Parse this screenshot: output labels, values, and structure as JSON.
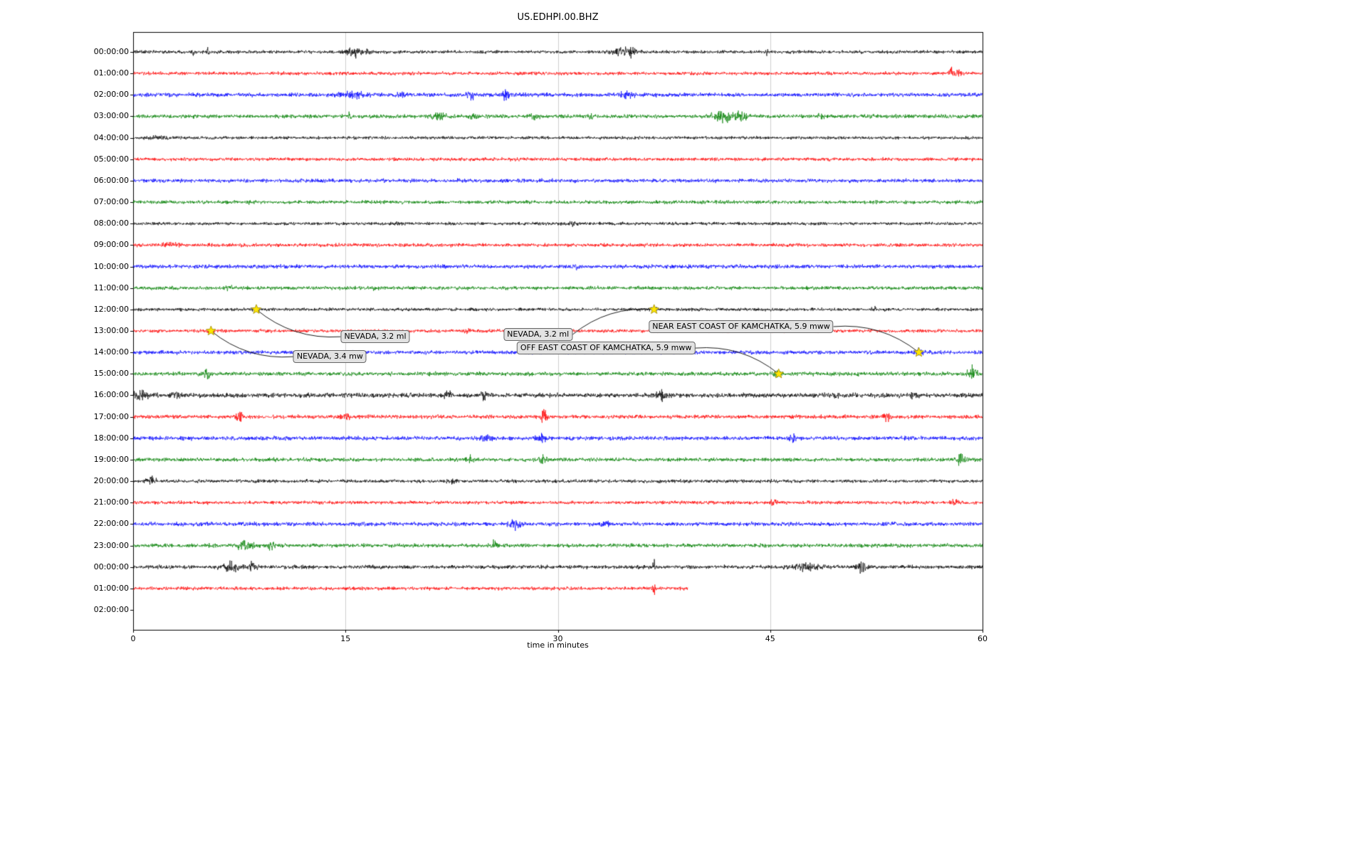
{
  "colors": {
    "grid": "#cfcfcf",
    "axis": "#000000",
    "star_fill": "#ffe600",
    "star_edge": "#9a8700",
    "annotation_bg": "#e2e2e2",
    "annotation_border": "#666666"
  },
  "chart_data": {
    "type": "line",
    "title": "US.EDHPI.00.BHZ",
    "xlabel": "time in minutes",
    "xlim": [
      0,
      60
    ],
    "x_ticks": [
      0,
      15,
      30,
      45,
      60
    ],
    "trace_color_cycle": [
      "#000000",
      "#ff0000",
      "#0000ff",
      "#008000"
    ],
    "rows": [
      {
        "label": "00:00:00",
        "color": "#000000",
        "base": 2.3,
        "end_min": 60,
        "bursts": [
          {
            "x": 4.2,
            "w": 0.15,
            "a": 5
          },
          {
            "x": 5.3,
            "w": 0.1,
            "a": 4
          },
          {
            "x": 15.6,
            "w": 0.5,
            "a": 7
          },
          {
            "x": 16.6,
            "w": 0.2,
            "a": 5
          },
          {
            "x": 34.6,
            "w": 0.8,
            "a": 5
          },
          {
            "x": 35.2,
            "w": 0.15,
            "a": 6
          },
          {
            "x": 44.8,
            "w": 0.07,
            "a": 13
          }
        ]
      },
      {
        "label": "01:00:00",
        "color": "#ff0000",
        "base": 2.4,
        "end_min": 60,
        "bursts": [
          {
            "x": 57.9,
            "w": 0.35,
            "a": 7
          },
          {
            "x": 58.4,
            "w": 0.15,
            "a": 5
          }
        ]
      },
      {
        "label": "02:00:00",
        "color": "#0000ff",
        "base": 2.8,
        "end_min": 60,
        "bursts": [
          {
            "x": 15.6,
            "w": 0.9,
            "a": 4
          },
          {
            "x": 18.8,
            "w": 0.3,
            "a": 4
          },
          {
            "x": 23.8,
            "w": 0.25,
            "a": 7
          },
          {
            "x": 26.3,
            "w": 0.2,
            "a": 9
          },
          {
            "x": 34.8,
            "w": 0.4,
            "a": 4
          }
        ]
      },
      {
        "label": "03:00:00",
        "color": "#008000",
        "base": 2.7,
        "end_min": 60,
        "bursts": [
          {
            "x": 15.3,
            "w": 0.1,
            "a": 6
          },
          {
            "x": 21.6,
            "w": 0.5,
            "a": 4
          },
          {
            "x": 24.0,
            "w": 0.3,
            "a": 3
          },
          {
            "x": 28.2,
            "w": 0.4,
            "a": 3
          },
          {
            "x": 32.3,
            "w": 0.15,
            "a": 5
          },
          {
            "x": 41.8,
            "w": 0.8,
            "a": 7
          },
          {
            "x": 43.0,
            "w": 0.3,
            "a": 6
          },
          {
            "x": 48.6,
            "w": 0.3,
            "a": 3
          }
        ]
      },
      {
        "label": "04:00:00",
        "color": "#000000",
        "base": 2.2,
        "end_min": 60,
        "bursts": [
          {
            "x": 1.8,
            "w": 0.8,
            "a": 2
          }
        ]
      },
      {
        "label": "05:00:00",
        "color": "#ff0000",
        "base": 2.4,
        "end_min": 60,
        "bursts": []
      },
      {
        "label": "06:00:00",
        "color": "#0000ff",
        "base": 2.7,
        "end_min": 60,
        "bursts": []
      },
      {
        "label": "07:00:00",
        "color": "#008000",
        "base": 2.5,
        "end_min": 60,
        "bursts": [
          {
            "x": 8.3,
            "w": 0.3,
            "a": 2
          }
        ]
      },
      {
        "label": "08:00:00",
        "color": "#000000",
        "base": 2.2,
        "end_min": 60,
        "bursts": [
          {
            "x": 18.6,
            "w": 0.3,
            "a": 2
          },
          {
            "x": 31.0,
            "w": 0.3,
            "a": 2
          }
        ]
      },
      {
        "label": "09:00:00",
        "color": "#ff0000",
        "base": 2.5,
        "end_min": 60,
        "bursts": [
          {
            "x": 2.5,
            "w": 1.0,
            "a": 1.5
          }
        ]
      },
      {
        "label": "10:00:00",
        "color": "#0000ff",
        "base": 2.7,
        "end_min": 60,
        "bursts": [
          {
            "x": 31.2,
            "w": 0.3,
            "a": 2.5
          }
        ]
      },
      {
        "label": "11:00:00",
        "color": "#008000",
        "base": 2.5,
        "end_min": 60,
        "bursts": [
          {
            "x": 6.8,
            "w": 0.3,
            "a": 2.5
          },
          {
            "x": 17.0,
            "w": 0.3,
            "a": 2
          }
        ]
      },
      {
        "label": "12:00:00",
        "color": "#000000",
        "base": 2.2,
        "end_min": 60,
        "bursts": [
          {
            "x": 8.7,
            "w": 0.2,
            "a": 2.5
          },
          {
            "x": 36.8,
            "w": 0.2,
            "a": 2.5
          },
          {
            "x": 52.3,
            "w": 0.2,
            "a": 3
          }
        ]
      },
      {
        "label": "13:00:00",
        "color": "#ff0000",
        "base": 2.4,
        "end_min": 60,
        "bursts": [
          {
            "x": 5.5,
            "w": 0.2,
            "a": 2.5
          },
          {
            "x": 23.8,
            "w": 0.3,
            "a": 2
          }
        ]
      },
      {
        "label": "14:00:00",
        "color": "#0000ff",
        "base": 2.7,
        "end_min": 60,
        "bursts": [
          {
            "x": 55.5,
            "w": 0.3,
            "a": 3.5
          }
        ]
      },
      {
        "label": "15:00:00",
        "color": "#008000",
        "base": 2.8,
        "end_min": 60,
        "bursts": [
          {
            "x": 5.2,
            "w": 0.25,
            "a": 7
          },
          {
            "x": 45.6,
            "w": 0.3,
            "a": 3
          },
          {
            "x": 59.3,
            "w": 0.3,
            "a": 10
          }
        ]
      },
      {
        "label": "16:00:00",
        "color": "#000000",
        "base": 3.2,
        "end_min": 60,
        "bursts": [
          {
            "x": 0.6,
            "w": 0.5,
            "a": 5
          },
          {
            "x": 3.0,
            "w": 0.4,
            "a": 3
          },
          {
            "x": 22.2,
            "w": 0.2,
            "a": 7
          },
          {
            "x": 24.8,
            "w": 0.25,
            "a": 6
          },
          {
            "x": 37.3,
            "w": 0.4,
            "a": 5
          },
          {
            "x": 49.8,
            "w": 0.3,
            "a": 3
          },
          {
            "x": 55.2,
            "w": 0.3,
            "a": 3
          }
        ]
      },
      {
        "label": "17:00:00",
        "color": "#ff0000",
        "base": 2.7,
        "end_min": 60,
        "bursts": [
          {
            "x": 7.5,
            "w": 0.2,
            "a": 7
          },
          {
            "x": 15.0,
            "w": 0.25,
            "a": 6
          },
          {
            "x": 29.0,
            "w": 0.25,
            "a": 9
          },
          {
            "x": 53.3,
            "w": 0.25,
            "a": 6
          }
        ]
      },
      {
        "label": "18:00:00",
        "color": "#0000ff",
        "base": 2.9,
        "end_min": 60,
        "bursts": [
          {
            "x": 25.0,
            "w": 0.3,
            "a": 5
          },
          {
            "x": 28.8,
            "w": 0.4,
            "a": 5
          },
          {
            "x": 46.6,
            "w": 0.25,
            "a": 6
          }
        ]
      },
      {
        "label": "19:00:00",
        "color": "#008000",
        "base": 2.7,
        "end_min": 60,
        "bursts": [
          {
            "x": 23.8,
            "w": 0.25,
            "a": 5
          },
          {
            "x": 29.0,
            "w": 0.3,
            "a": 7
          },
          {
            "x": 58.5,
            "w": 0.3,
            "a": 8
          }
        ]
      },
      {
        "label": "20:00:00",
        "color": "#000000",
        "base": 2.4,
        "end_min": 60,
        "bursts": [
          {
            "x": 1.3,
            "w": 0.3,
            "a": 6
          },
          {
            "x": 22.5,
            "w": 0.3,
            "a": 2
          }
        ]
      },
      {
        "label": "21:00:00",
        "color": "#ff0000",
        "base": 2.4,
        "end_min": 60,
        "bursts": [
          {
            "x": 45.3,
            "w": 0.3,
            "a": 2.5
          },
          {
            "x": 58.0,
            "w": 0.3,
            "a": 5
          }
        ]
      },
      {
        "label": "22:00:00",
        "color": "#0000ff",
        "base": 2.8,
        "end_min": 60,
        "bursts": [
          {
            "x": 26.8,
            "w": 0.6,
            "a": 6
          },
          {
            "x": 33.4,
            "w": 0.3,
            "a": 3
          }
        ]
      },
      {
        "label": "23:00:00",
        "color": "#008000",
        "base": 2.7,
        "end_min": 60,
        "bursts": [
          {
            "x": 7.9,
            "w": 0.5,
            "a": 6
          },
          {
            "x": 9.7,
            "w": 0.25,
            "a": 5
          },
          {
            "x": 25.5,
            "w": 0.2,
            "a": 6
          }
        ]
      },
      {
        "label": "00:00:00",
        "color": "#000000",
        "base": 2.7,
        "end_min": 60,
        "bursts": [
          {
            "x": 6.9,
            "w": 0.6,
            "a": 6
          },
          {
            "x": 8.4,
            "w": 0.3,
            "a": 5
          },
          {
            "x": 36.8,
            "w": 0.08,
            "a": 13
          },
          {
            "x": 47.5,
            "w": 0.9,
            "a": 4
          },
          {
            "x": 51.4,
            "w": 0.3,
            "a": 6
          }
        ]
      },
      {
        "label": "01:00:00",
        "color": "#ff0000",
        "base": 2.4,
        "end_min": 39.2,
        "bursts": [
          {
            "x": 36.8,
            "w": 0.08,
            "a": 11
          }
        ]
      },
      {
        "label": "02:00:00",
        "color": "#0000ff",
        "base": 0,
        "end_min": 0,
        "bursts": []
      }
    ],
    "events": [
      {
        "label": "NEVADA, 3.2 ml",
        "row": 12,
        "x_min": 8.7,
        "box_x_min": 17.1,
        "box_row": 13.27
      },
      {
        "label": "NEVADA, 3.4 mw",
        "row": 13,
        "x_min": 5.5,
        "box_x_min": 13.9,
        "box_row": 14.2
      },
      {
        "label": "NEVADA, 3.2 ml",
        "row": 12,
        "x_min": 36.8,
        "box_x_min": 28.6,
        "box_row": 13.17
      },
      {
        "label": "NEAR EAST COAST OF KAMCHATKA, 5.9 mww",
        "row": 14,
        "x_min": 55.5,
        "box_x_min": 42.95,
        "box_row": 12.8
      },
      {
        "label": "OFF EAST COAST OF KAMCHATKA, 5.9 mww",
        "row": 15,
        "x_min": 45.6,
        "box_x_min": 33.4,
        "box_row": 13.8
      }
    ]
  }
}
